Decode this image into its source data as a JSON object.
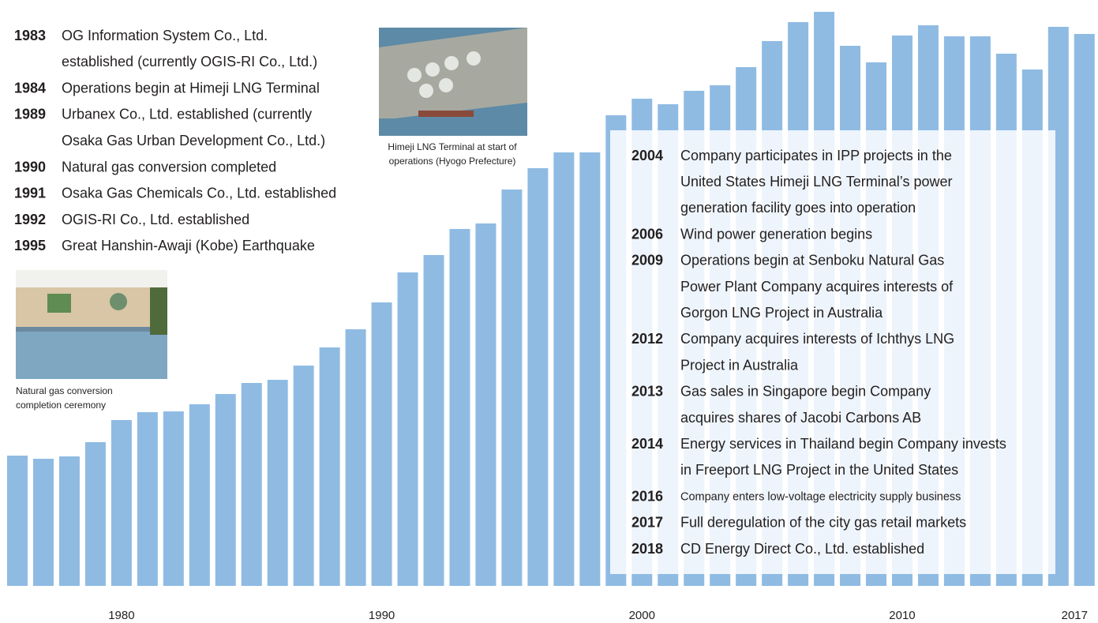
{
  "chart_data": {
    "type": "bar",
    "color": "#8fbbe3",
    "ylim": [
      0,
      742
    ],
    "categories": [
      null,
      null,
      null,
      null,
      "1980",
      null,
      null,
      null,
      null,
      null,
      null,
      null,
      null,
      null,
      "1990",
      null,
      null,
      null,
      null,
      null,
      null,
      null,
      null,
      null,
      "2000",
      null,
      null,
      null,
      null,
      null,
      null,
      null,
      null,
      null,
      "2010",
      null,
      null,
      null,
      null,
      null,
      null,
      "2017"
    ],
    "values": [
      165,
      161,
      164,
      182,
      210,
      220,
      221,
      230,
      243,
      257,
      261,
      279,
      302,
      325,
      359,
      397,
      419,
      452,
      459,
      502,
      529,
      549,
      549,
      596,
      617,
      610,
      627,
      634,
      657,
      690,
      714,
      727,
      684,
      663,
      697,
      710,
      696,
      696,
      674,
      654,
      708,
      699
    ]
  },
  "timeline_left": [
    {
      "year": "1983",
      "lines": [
        "OG Information System Co., Ltd.",
        "established (currently OGIS-RI Co., Ltd.)"
      ]
    },
    {
      "year": "1984",
      "lines": [
        "Operations begin at Himeji LNG Terminal"
      ]
    },
    {
      "year": "1989",
      "lines": [
        "Urbanex Co., Ltd. established (currently",
        "Osaka Gas Urban Development Co., Ltd.)"
      ]
    },
    {
      "year": "1990",
      "lines": [
        "Natural gas conversion completed"
      ]
    },
    {
      "year": "1991",
      "lines": [
        "Osaka Gas Chemicals Co., Ltd. established"
      ]
    },
    {
      "year": "1992",
      "lines": [
        "OGIS-RI Co., Ltd. established"
      ]
    },
    {
      "year": "1995",
      "lines": [
        "Great Hanshin-Awaji (Kobe) Earthquake"
      ]
    }
  ],
  "timeline_right": [
    {
      "year": "2004",
      "lines": [
        "Company participates in IPP projects in the",
        "United States Himeji LNG Terminal’s power",
        "generation facility goes into operation"
      ]
    },
    {
      "year": "2006",
      "lines": [
        "Wind power generation begins"
      ]
    },
    {
      "year": "2009",
      "lines": [
        "Operations begin at Senboku Natural Gas",
        "Power Plant Company acquires interests of",
        "Gorgon LNG Project in Australia"
      ]
    },
    {
      "year": "2012",
      "lines": [
        "Company acquires interests of Ichthys LNG",
        "Project in Australia"
      ]
    },
    {
      "year": "2013",
      "lines": [
        "Gas sales in Singapore begin Company",
        "acquires shares of Jacobi Carbons AB"
      ]
    },
    {
      "year": "2014",
      "lines": [
        "Energy services in Thailand begin Company invests",
        "in Freeport LNG Project in the United States"
      ]
    },
    {
      "year": "2016",
      "lines": [
        "Company enters low-voltage electricity supply business"
      ]
    },
    {
      "year": "2017",
      "lines": [
        "Full deregulation of the city gas retail markets"
      ]
    },
    {
      "year": "2018",
      "lines": [
        "CD Energy Direct Co., Ltd. established"
      ]
    }
  ],
  "photos": [
    {
      "caption": [
        "Natural gas conversion",
        "completion ceremony"
      ]
    },
    {
      "caption": [
        "Himeji LNG Terminal at start of",
        "operations (Hyogo Prefecture)"
      ]
    }
  ]
}
